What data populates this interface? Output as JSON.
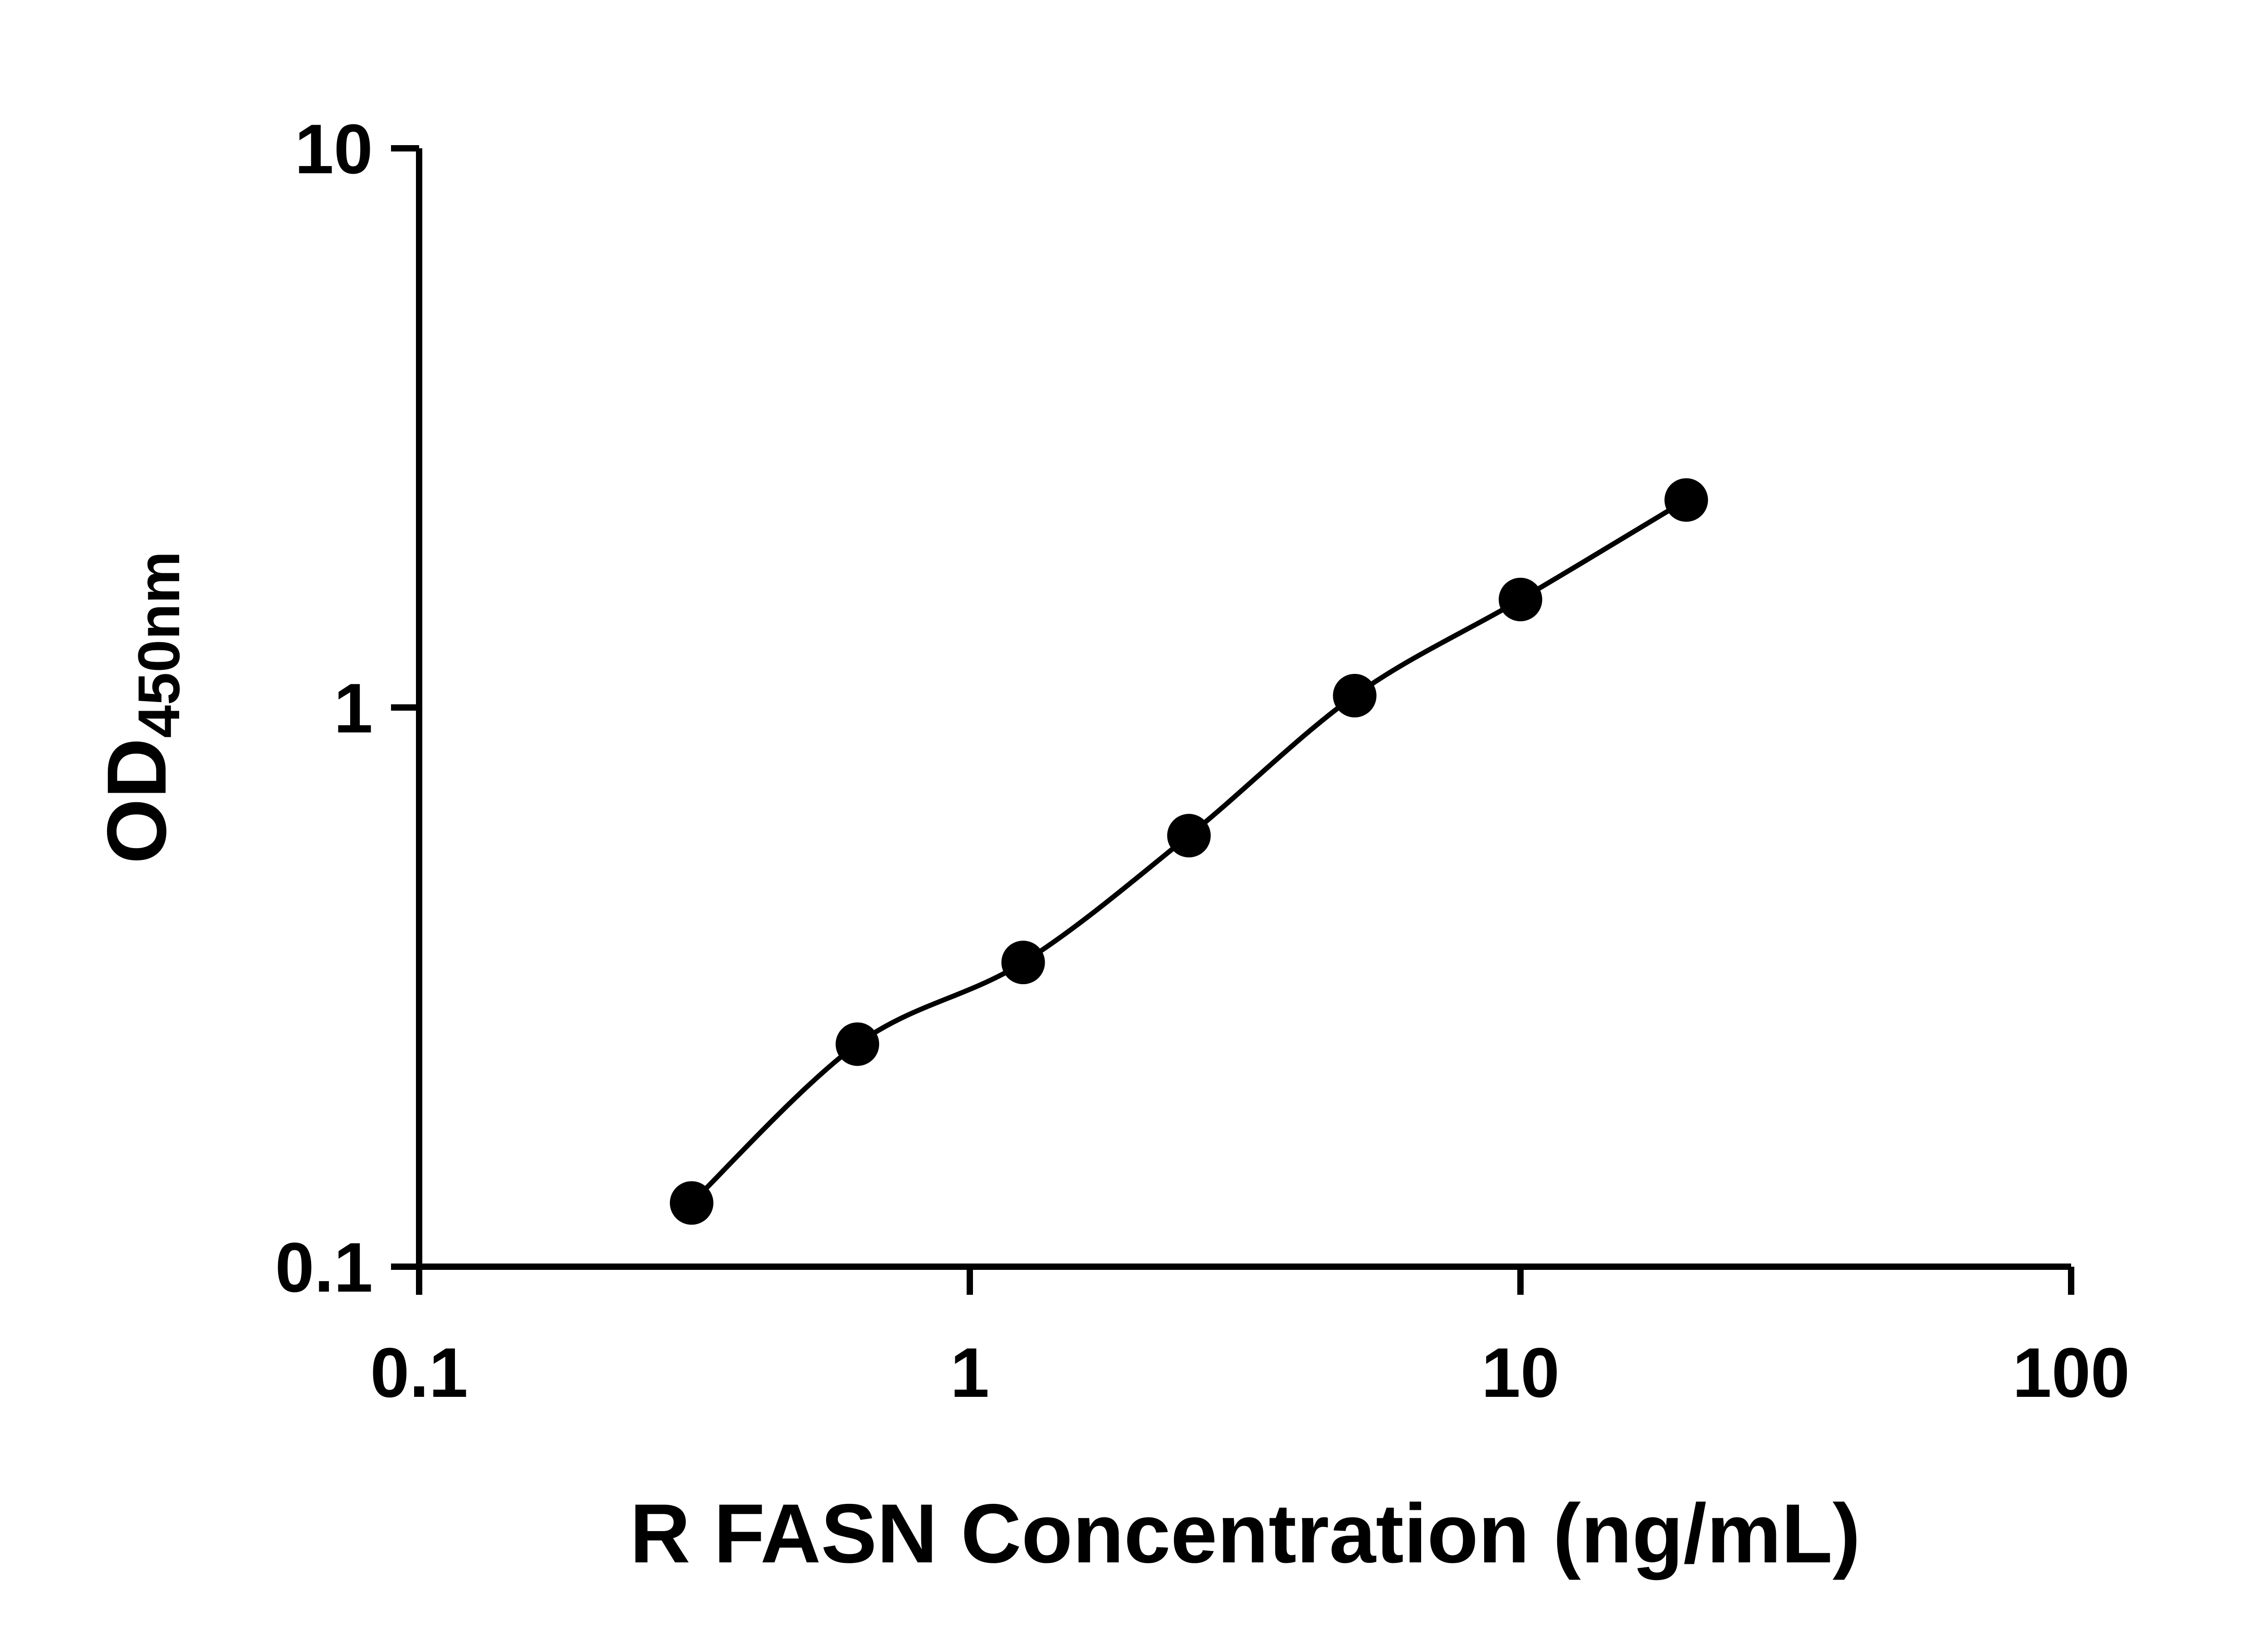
{
  "figure": {
    "background": "#ffffff"
  },
  "chart_data": {
    "type": "scatter",
    "title": "",
    "xlabel": "R FASN Concentration (ng/mL)",
    "ylabel": "OD",
    "ylabel_sub": "450nm",
    "x_scale": "log",
    "y_scale": "log",
    "xlim": [
      0.1,
      100
    ],
    "ylim": [
      0.1,
      10
    ],
    "x_ticks": [
      0.1,
      1,
      10,
      100
    ],
    "x_tick_labels": [
      "0.1",
      "1",
      "10",
      "100"
    ],
    "y_ticks": [
      0.1,
      1,
      10
    ],
    "y_tick_labels": [
      "0.1",
      "1",
      "10"
    ],
    "series": [
      {
        "x": [
          0.3125,
          0.625,
          1.25,
          2.5,
          5,
          10,
          20
        ],
        "y": [
          0.13,
          0.25,
          0.35,
          0.59,
          1.05,
          1.56,
          2.35
        ]
      }
    ],
    "grid": false,
    "legend": false,
    "axis_color": "#000000",
    "line_color": "#000000",
    "marker_color": "#000000",
    "marker_shape": "circle"
  }
}
